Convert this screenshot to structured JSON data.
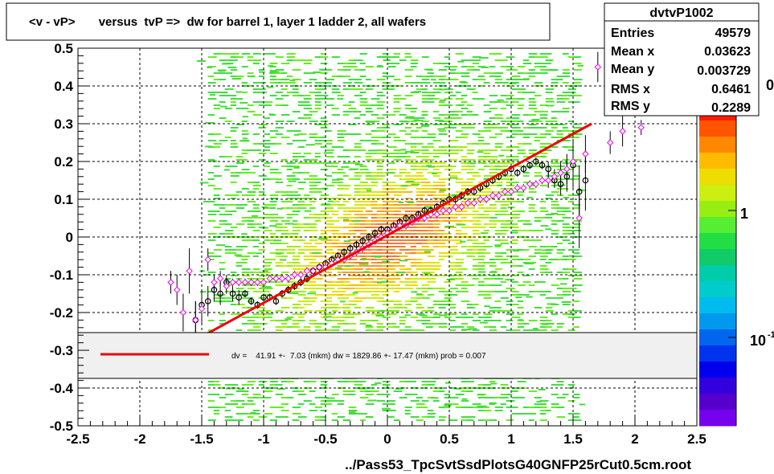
{
  "chart_data": {
    "type": "scatter",
    "title": "<v - vP>       versus  tvP =>  dw for barrel 1, layer 1 ladder 2, all wafers",
    "xlabel": "../Pass53_TpcSvtSsdPlotsG40GNFP25rCut0.5cm.root",
    "ylabel": "",
    "xlim": [
      -2.5,
      2.5
    ],
    "ylim": [
      -0.5,
      0.5
    ],
    "x_ticks": [
      -2.5,
      -2,
      -1.5,
      -1,
      -0.5,
      0,
      0.5,
      1,
      1.5,
      2,
      2.5
    ],
    "x_tick_labels": [
      "-2.5",
      "-2",
      "-1.5",
      "-1",
      "-0.5",
      "0",
      "0.5",
      "1",
      "1.5",
      "2",
      "2.5"
    ],
    "y_ticks": [
      -0.5,
      -0.4,
      -0.3,
      -0.2,
      -0.1,
      0,
      0.1,
      0.2,
      0.3,
      0.4,
      0.5
    ],
    "y_tick_labels": [
      "-0.5",
      "-0.4",
      "-0.3",
      "-0.2",
      "-0.1",
      "0",
      "0.1",
      "0.2",
      "0.3",
      "0.4",
      "0.5"
    ],
    "grid": true,
    "stats": {
      "name": "dvtvP1002",
      "rows": [
        {
          "label": "Entries",
          "value": "49579"
        },
        {
          "label": "Mean x",
          "value": "0.03623"
        },
        {
          "label": "Mean y",
          "value": "0.003729"
        },
        {
          "label": "RMS x",
          "value": "0.6461"
        },
        {
          "label": "RMS y",
          "value": "0.2289"
        }
      ]
    },
    "palette_labels": [
      "0",
      "1",
      "10"
    ],
    "palette_label_suffix": "-1",
    "fit": {
      "text": "dv =    41.91 +-  7.03 (mkm) dw = 1829.86 +- 17.47 (mkm) prob = 0.007",
      "line_color": "#ee0000",
      "x": [
        -1.45,
        1.65
      ],
      "y": [
        -0.255,
        0.3
      ]
    },
    "series": [
      {
        "marker": "open-circle",
        "color": "#000000",
        "x": [
          -1.55,
          -1.5,
          -1.45,
          -1.4,
          -1.35,
          -1.3,
          -1.25,
          -1.2,
          -1.15,
          -1.1,
          -1.05,
          -1.0,
          -0.95,
          -0.9,
          -0.85,
          -0.8,
          -0.75,
          -0.7,
          -0.65,
          -0.6,
          -0.55,
          -0.5,
          -0.45,
          -0.4,
          -0.35,
          -0.3,
          -0.25,
          -0.2,
          -0.15,
          -0.1,
          -0.05,
          0.0,
          0.05,
          0.1,
          0.15,
          0.2,
          0.25,
          0.3,
          0.35,
          0.4,
          0.45,
          0.5,
          0.55,
          0.6,
          0.65,
          0.7,
          0.75,
          0.8,
          0.85,
          0.9,
          0.95,
          1.0,
          1.05,
          1.1,
          1.15,
          1.2,
          1.25,
          1.3,
          1.35,
          1.4,
          1.45,
          1.5,
          1.55,
          1.6
        ],
        "y": [
          -0.22,
          -0.18,
          -0.17,
          -0.14,
          -0.15,
          -0.12,
          -0.15,
          -0.16,
          -0.15,
          -0.17,
          -0.18,
          -0.16,
          -0.16,
          -0.17,
          -0.15,
          -0.14,
          -0.13,
          -0.12,
          -0.11,
          -0.09,
          -0.08,
          -0.07,
          -0.06,
          -0.05,
          -0.04,
          -0.03,
          -0.02,
          -0.01,
          0.0,
          0.01,
          0.02,
          0.02,
          0.03,
          0.04,
          0.05,
          0.05,
          0.06,
          0.07,
          0.07,
          0.08,
          0.09,
          0.1,
          0.1,
          0.11,
          0.12,
          0.12,
          0.13,
          0.14,
          0.15,
          0.16,
          0.17,
          0.18,
          0.17,
          0.18,
          0.19,
          0.2,
          0.19,
          0.18,
          0.15,
          0.14,
          0.16,
          0.19,
          0.12,
          0.15
        ],
        "err": [
          0.05,
          0.04,
          0.04,
          0.03,
          0.03,
          0.02,
          0.02,
          0.02,
          0.01,
          0.01,
          0.01,
          0.01,
          0.01,
          0.01,
          0.01,
          0.01,
          0.01,
          0.01,
          0.01,
          0.01,
          0.01,
          0.01,
          0.01,
          0.01,
          0.01,
          0.01,
          0.01,
          0.01,
          0.01,
          0.01,
          0.01,
          0.01,
          0.01,
          0.01,
          0.01,
          0.01,
          0.01,
          0.01,
          0.01,
          0.01,
          0.01,
          0.01,
          0.01,
          0.01,
          0.01,
          0.01,
          0.01,
          0.01,
          0.01,
          0.01,
          0.01,
          0.01,
          0.01,
          0.01,
          0.01,
          0.01,
          0.01,
          0.02,
          0.02,
          0.03,
          0.04,
          0.06,
          0.07,
          0.08
        ]
      },
      {
        "marker": "open-diamond",
        "color": "#ee00ee",
        "x": [
          -1.75,
          -1.7,
          -1.65,
          -1.6,
          -1.55,
          -1.5,
          -1.45,
          -1.4,
          -1.35,
          -1.3,
          -1.25,
          -1.2,
          -1.15,
          -1.1,
          -1.05,
          -1.0,
          -0.95,
          -0.9,
          -0.85,
          -0.8,
          -0.75,
          -0.7,
          -0.65,
          -0.6,
          -0.55,
          -0.5,
          -0.45,
          -0.4,
          -0.35,
          -0.3,
          -0.25,
          -0.2,
          -0.15,
          -0.1,
          -0.05,
          0.0,
          0.05,
          0.1,
          0.15,
          0.2,
          0.25,
          0.3,
          0.35,
          0.4,
          0.45,
          0.5,
          0.55,
          0.6,
          0.65,
          0.7,
          0.75,
          0.8,
          0.85,
          0.9,
          0.95,
          1.0,
          1.05,
          1.1,
          1.15,
          1.2,
          1.25,
          1.3,
          1.35,
          1.4,
          1.45,
          1.5,
          1.55,
          1.6,
          1.7,
          1.8,
          1.9,
          2.05
        ],
        "y": [
          -0.12,
          -0.14,
          -0.2,
          -0.09,
          -0.22,
          -0.19,
          -0.06,
          -0.12,
          -0.11,
          -0.13,
          -0.12,
          -0.12,
          -0.12,
          -0.12,
          -0.12,
          -0.12,
          -0.11,
          -0.11,
          -0.11,
          -0.11,
          -0.1,
          -0.1,
          -0.09,
          -0.09,
          -0.08,
          -0.08,
          -0.07,
          -0.06,
          -0.06,
          -0.05,
          -0.04,
          -0.03,
          -0.02,
          -0.01,
          0.0,
          0.01,
          0.02,
          0.03,
          0.03,
          0.04,
          0.05,
          0.05,
          0.06,
          0.06,
          0.07,
          0.07,
          0.08,
          0.08,
          0.09,
          0.09,
          0.1,
          0.1,
          0.11,
          0.11,
          0.12,
          0.12,
          0.13,
          0.13,
          0.14,
          0.14,
          0.15,
          0.15,
          0.16,
          0.17,
          0.18,
          0.2,
          0.05,
          0.22,
          0.45,
          0.25,
          0.28,
          0.29
        ],
        "err": [
          0.03,
          0.04,
          0.05,
          0.06,
          0.05,
          0.04,
          0.03,
          0.02,
          0.02,
          0.02,
          0.01,
          0.01,
          0.01,
          0.01,
          0.01,
          0.01,
          0.01,
          0.01,
          0.01,
          0.01,
          0.01,
          0.01,
          0.01,
          0.01,
          0.01,
          0.01,
          0.01,
          0.01,
          0.01,
          0.01,
          0.01,
          0.01,
          0.01,
          0.01,
          0.01,
          0.01,
          0.01,
          0.01,
          0.01,
          0.01,
          0.01,
          0.01,
          0.01,
          0.01,
          0.01,
          0.01,
          0.01,
          0.01,
          0.01,
          0.01,
          0.01,
          0.01,
          0.01,
          0.01,
          0.01,
          0.01,
          0.01,
          0.01,
          0.01,
          0.01,
          0.01,
          0.02,
          0.02,
          0.03,
          0.04,
          0.06,
          0.08,
          0.05,
          0.04,
          0.03,
          0.04,
          0.02
        ]
      }
    ]
  }
}
